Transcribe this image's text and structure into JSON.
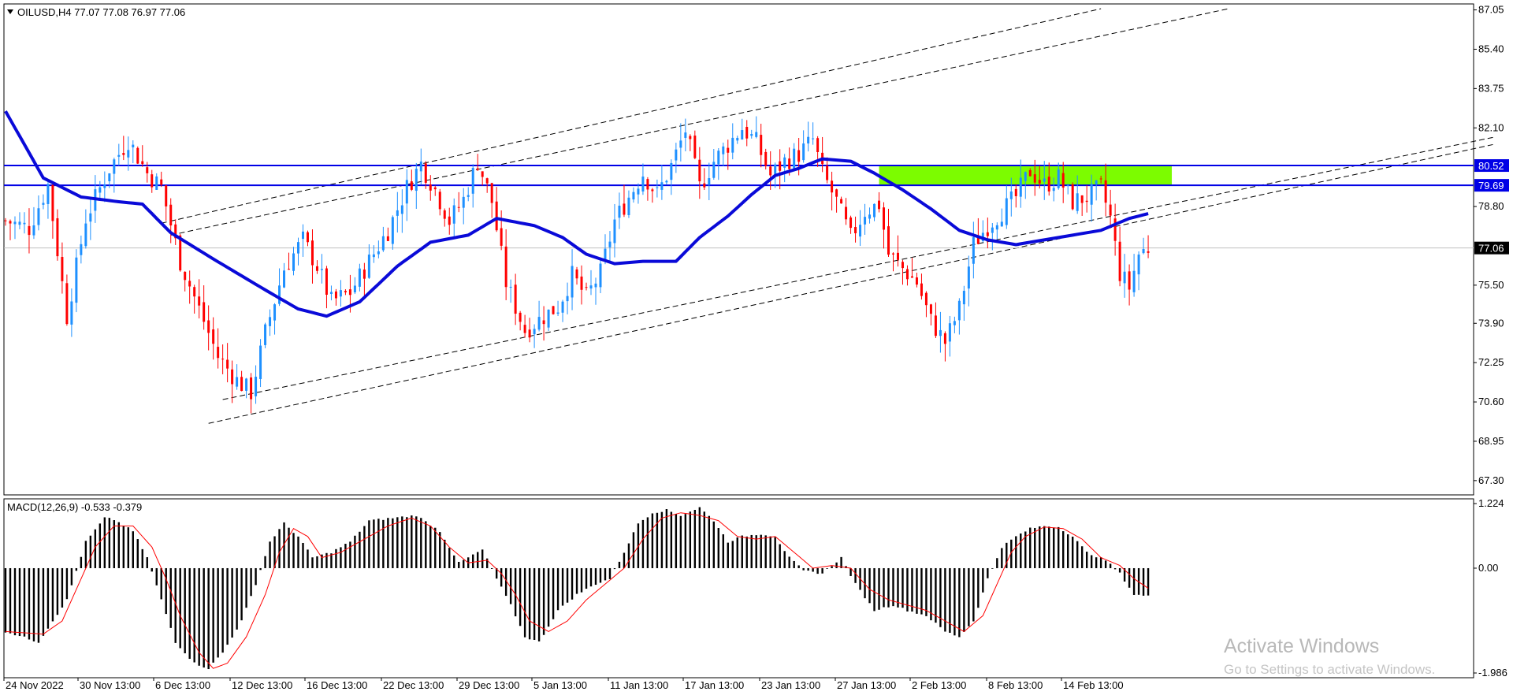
{
  "header": {
    "symbol_line": "OILUSD,H4  77.07 77.08 76.97 77.06",
    "macd_line": "MACD(12,26,9) -0.533 -0.379"
  },
  "watermark": {
    "title": "Activate Windows",
    "subtitle": "Go to Settings to activate Windows."
  },
  "colors": {
    "bull": "#1e90ff",
    "bear": "#ff0000",
    "ma": "#0a0ad8",
    "level": "#0000e6",
    "zone": "#7cfc00",
    "macd_hist": "#000000",
    "macd_signal": "#ff0000",
    "price_tag_bg": "#0000e6",
    "current_tag_bg": "#000000",
    "channel": "#000000"
  },
  "chart_data": [
    {
      "type": "candlestick",
      "symbol": "OILUSD",
      "timeframe": "H4",
      "ylim": [
        66.7,
        87.3
      ],
      "y_ticks": [
        "87.05",
        "85.40",
        "83.75",
        "82.10",
        "78.80",
        "75.50",
        "73.90",
        "72.25",
        "70.60",
        "68.95",
        "67.30"
      ],
      "time_labels": [
        "24 Nov 2022",
        "30 Nov 13:00",
        "6 Dec 13:00",
        "12 Dec 13:00",
        "16 Dec 13:00",
        "22 Dec 13:00",
        "29 Dec 13:00",
        "5 Jan 13:00",
        "11 Jan 13:00",
        "17 Jan 13:00",
        "23 Jan 13:00",
        "27 Jan 13:00",
        "2 Feb 13:00",
        "8 Feb 13:00",
        "14 Feb 13:00"
      ],
      "horizontal_levels": [
        {
          "price": 80.52,
          "label": "80.52"
        },
        {
          "price": 79.69,
          "label": "79.69"
        }
      ],
      "current_price": {
        "price": 77.06,
        "label": "77.06"
      },
      "price_anchors": [
        [
          0,
          78.2
        ],
        [
          5,
          77.9
        ],
        [
          9,
          79.7
        ],
        [
          13,
          74.2
        ],
        [
          17,
          78.3
        ],
        [
          22,
          80.4
        ],
        [
          26,
          81.6
        ],
        [
          30,
          80.2
        ],
        [
          33,
          79.6
        ],
        [
          37,
          76.5
        ],
        [
          41,
          74.5
        ],
        [
          45,
          72.5
        ],
        [
          49,
          71.5
        ],
        [
          52,
          71.0
        ],
        [
          55,
          73.5
        ],
        [
          59,
          76.2
        ],
        [
          63,
          77.4
        ],
        [
          66,
          76.3
        ],
        [
          69,
          74.8
        ],
        [
          73,
          75.2
        ],
        [
          77,
          76.5
        ],
        [
          81,
          77.8
        ],
        [
          85,
          79.6
        ],
        [
          88,
          80.6
        ],
        [
          91,
          79.5
        ],
        [
          94,
          78.2
        ],
        [
          97,
          79.1
        ],
        [
          100,
          80.7
        ],
        [
          103,
          79.0
        ],
        [
          106,
          75.6
        ],
        [
          110,
          73.6
        ],
        [
          114,
          74.2
        ],
        [
          117,
          74.6
        ],
        [
          120,
          75.9
        ],
        [
          123,
          75.0
        ],
        [
          126,
          76.0
        ],
        [
          129,
          78.2
        ],
        [
          132,
          79.2
        ],
        [
          135,
          80.2
        ],
        [
          138,
          79.3
        ],
        [
          141,
          80.5
        ],
        [
          144,
          82.0
        ],
        [
          147,
          79.6
        ],
        [
          150,
          80.7
        ],
        [
          153,
          81.4
        ],
        [
          156,
          82.1
        ],
        [
          159,
          81.5
        ],
        [
          162,
          80.1
        ],
        [
          165,
          80.7
        ],
        [
          168,
          81.0
        ],
        [
          171,
          81.6
        ],
        [
          173,
          80.2
        ],
        [
          176,
          79.0
        ],
        [
          179,
          77.5
        ],
        [
          182,
          78.6
        ],
        [
          185,
          78.9
        ],
        [
          187,
          76.8
        ],
        [
          190,
          76.2
        ],
        [
          193,
          75.6
        ],
        [
          196,
          74.0
        ],
        [
          199,
          73.1
        ],
        [
          202,
          74.5
        ],
        [
          205,
          77.2
        ],
        [
          208,
          78.0
        ],
        [
          211,
          78.6
        ],
        [
          214,
          79.2
        ],
        [
          217,
          80.3
        ],
        [
          220,
          79.7
        ],
        [
          223,
          80.0
        ],
        [
          226,
          79.0
        ],
        [
          229,
          79.2
        ],
        [
          232,
          79.6
        ],
        [
          234,
          78.3
        ],
        [
          236,
          76.0
        ],
        [
          238,
          75.4
        ],
        [
          240,
          76.8
        ],
        [
          242,
          77.06
        ]
      ],
      "moving_average": [
        [
          0,
          82.8
        ],
        [
          8,
          80.0
        ],
        [
          16,
          79.2
        ],
        [
          24,
          79.0
        ],
        [
          29,
          78.9
        ],
        [
          35,
          77.7
        ],
        [
          44,
          76.6
        ],
        [
          55,
          75.3
        ],
        [
          62,
          74.5
        ],
        [
          68,
          74.2
        ],
        [
          75,
          74.8
        ],
        [
          83,
          76.3
        ],
        [
          90,
          77.3
        ],
        [
          98,
          77.6
        ],
        [
          104,
          78.3
        ],
        [
          112,
          78.0
        ],
        [
          118,
          77.5
        ],
        [
          123,
          76.8
        ],
        [
          129,
          76.4
        ],
        [
          135,
          76.5
        ],
        [
          142,
          76.5
        ],
        [
          147,
          77.5
        ],
        [
          153,
          78.4
        ],
        [
          158,
          79.3
        ],
        [
          163,
          80.1
        ],
        [
          168,
          80.4
        ],
        [
          173,
          80.8
        ],
        [
          179,
          80.7
        ],
        [
          184,
          80.2
        ],
        [
          190,
          79.5
        ],
        [
          196,
          78.7
        ],
        [
          202,
          77.8
        ],
        [
          208,
          77.4
        ],
        [
          214,
          77.2
        ],
        [
          220,
          77.4
        ],
        [
          226,
          77.6
        ],
        [
          232,
          77.8
        ],
        [
          238,
          78.3
        ],
        [
          242,
          78.5
        ]
      ],
      "channels": [
        {
          "name": "upper-1",
          "from": [
            33,
            78.1
          ],
          "to": [
            232,
            87.1
          ]
        },
        {
          "name": "upper-2",
          "from": [
            35,
            77.6
          ],
          "to": [
            259,
            87.1
          ]
        },
        {
          "name": "lower-1",
          "from": [
            46,
            70.7
          ],
          "to": [
            315,
            81.7
          ]
        },
        {
          "name": "lower-2",
          "from": [
            43,
            69.7
          ],
          "to": [
            315,
            81.4
          ]
        }
      ],
      "supply_zone": {
        "from_index": 185,
        "to_index": 247,
        "price_low": 79.69,
        "price_high": 80.52
      }
    },
    {
      "type": "bar",
      "name": "MACD(12,26,9)",
      "ylim": [
        -1.986,
        1.224
      ],
      "y_ticks": [
        "1.224",
        "0.00",
        "-1.986"
      ],
      "last_values": {
        "macd": -0.533,
        "signal": -0.379
      },
      "macd_anchors": [
        [
          0,
          -1.2
        ],
        [
          7,
          -1.4
        ],
        [
          10,
          -1.0
        ],
        [
          13,
          -0.6
        ],
        [
          17,
          0.5
        ],
        [
          21,
          0.95
        ],
        [
          23,
          0.92
        ],
        [
          27,
          0.7
        ],
        [
          30,
          0.2
        ],
        [
          33,
          -0.6
        ],
        [
          36,
          -1.4
        ],
        [
          40,
          -1.8
        ],
        [
          43,
          -1.9
        ],
        [
          46,
          -1.6
        ],
        [
          50,
          -1.0
        ],
        [
          53,
          -0.3
        ],
        [
          56,
          0.5
        ],
        [
          59,
          0.85
        ],
        [
          62,
          0.6
        ],
        [
          65,
          0.2
        ],
        [
          69,
          0.3
        ],
        [
          73,
          0.5
        ],
        [
          77,
          0.9
        ],
        [
          82,
          0.95
        ],
        [
          87,
          1.0
        ],
        [
          92,
          0.7
        ],
        [
          96,
          0.1
        ],
        [
          101,
          0.35
        ],
        [
          104,
          -0.2
        ],
        [
          107,
          -0.7
        ],
        [
          110,
          -1.3
        ],
        [
          113,
          -1.4
        ],
        [
          117,
          -0.8
        ],
        [
          121,
          -0.5
        ],
        [
          125,
          -0.3
        ],
        [
          128,
          -0.2
        ],
        [
          131,
          0.3
        ],
        [
          134,
          0.85
        ],
        [
          137,
          1.05
        ],
        [
          140,
          1.1
        ],
        [
          143,
          1.0
        ],
        [
          147,
          1.15
        ],
        [
          150,
          0.9
        ],
        [
          153,
          0.5
        ],
        [
          156,
          0.6
        ],
        [
          160,
          0.65
        ],
        [
          163,
          0.6
        ],
        [
          166,
          0.2
        ],
        [
          169,
          -0.05
        ],
        [
          173,
          -0.1
        ],
        [
          177,
          0.2
        ],
        [
          180,
          -0.3
        ],
        [
          184,
          -0.8
        ],
        [
          188,
          -0.7
        ],
        [
          191,
          -0.8
        ],
        [
          195,
          -0.9
        ],
        [
          199,
          -1.2
        ],
        [
          202,
          -1.3
        ],
        [
          205,
          -1.0
        ],
        [
          208,
          -0.2
        ],
        [
          211,
          0.4
        ],
        [
          214,
          0.6
        ],
        [
          217,
          0.75
        ],
        [
          220,
          0.8
        ],
        [
          223,
          0.78
        ],
        [
          226,
          0.6
        ],
        [
          229,
          0.3
        ],
        [
          233,
          0.15
        ],
        [
          236,
          -0.1
        ],
        [
          239,
          -0.5
        ],
        [
          242,
          -0.533
        ]
      ],
      "signal_anchors": [
        [
          0,
          -1.2
        ],
        [
          8,
          -1.25
        ],
        [
          12,
          -1.0
        ],
        [
          15,
          -0.4
        ],
        [
          19,
          0.4
        ],
        [
          23,
          0.8
        ],
        [
          27,
          0.8
        ],
        [
          31,
          0.4
        ],
        [
          34,
          -0.2
        ],
        [
          37,
          -0.9
        ],
        [
          41,
          -1.6
        ],
        [
          44,
          -1.9
        ],
        [
          47,
          -1.8
        ],
        [
          51,
          -1.3
        ],
        [
          55,
          -0.5
        ],
        [
          58,
          0.3
        ],
        [
          61,
          0.75
        ],
        [
          64,
          0.6
        ],
        [
          67,
          0.2
        ],
        [
          71,
          0.3
        ],
        [
          76,
          0.55
        ],
        [
          81,
          0.8
        ],
        [
          86,
          0.95
        ],
        [
          90,
          0.8
        ],
        [
          94,
          0.4
        ],
        [
          98,
          0.1
        ],
        [
          102,
          0.15
        ],
        [
          105,
          -0.1
        ],
        [
          108,
          -0.5
        ],
        [
          111,
          -1.0
        ],
        [
          115,
          -1.2
        ],
        [
          119,
          -1.0
        ],
        [
          123,
          -0.6
        ],
        [
          127,
          -0.3
        ],
        [
          131,
          0.0
        ],
        [
          135,
          0.55
        ],
        [
          139,
          0.95
        ],
        [
          143,
          1.05
        ],
        [
          147,
          1.0
        ],
        [
          151,
          0.9
        ],
        [
          155,
          0.6
        ],
        [
          159,
          0.55
        ],
        [
          163,
          0.6
        ],
        [
          167,
          0.3
        ],
        [
          171,
          0.0
        ],
        [
          175,
          0.05
        ],
        [
          179,
          0.0
        ],
        [
          183,
          -0.4
        ],
        [
          187,
          -0.6
        ],
        [
          191,
          -0.7
        ],
        [
          195,
          -0.8
        ],
        [
          199,
          -1.0
        ],
        [
          203,
          -1.2
        ],
        [
          207,
          -0.9
        ],
        [
          210,
          -0.3
        ],
        [
          213,
          0.3
        ],
        [
          216,
          0.6
        ],
        [
          220,
          0.78
        ],
        [
          224,
          0.75
        ],
        [
          228,
          0.55
        ],
        [
          232,
          0.2
        ],
        [
          236,
          0.05
        ],
        [
          239,
          -0.2
        ],
        [
          242,
          -0.379
        ]
      ]
    }
  ]
}
